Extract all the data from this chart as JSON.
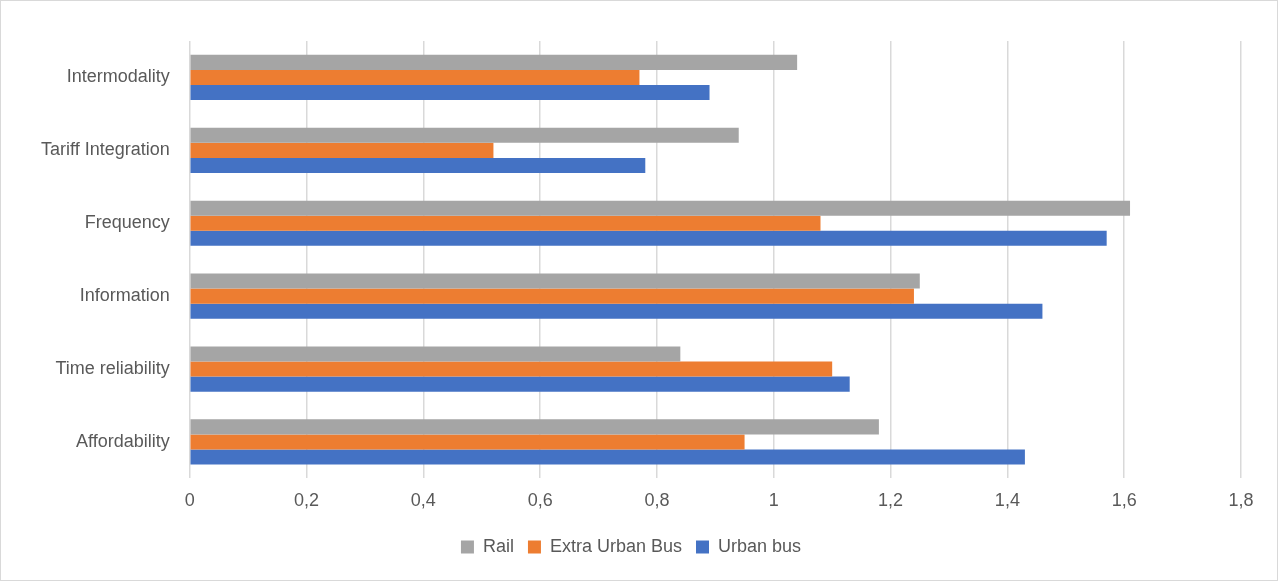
{
  "chart_data": {
    "type": "bar",
    "orientation": "horizontal",
    "categories": [
      "Intermodality",
      "Tariff Integration",
      "Frequency",
      "Information",
      "Time reliability",
      "Affordability"
    ],
    "series": [
      {
        "name": "Rail",
        "color": "#a5a5a5",
        "values": [
          1.04,
          0.94,
          1.61,
          1.25,
          0.84,
          1.18
        ]
      },
      {
        "name": "Extra Urban Bus",
        "color": "#ed7d31",
        "values": [
          0.77,
          0.52,
          1.08,
          1.24,
          1.1,
          0.95
        ]
      },
      {
        "name": "Urban bus",
        "color": "#4472c4",
        "values": [
          0.89,
          0.78,
          1.57,
          1.46,
          1.13,
          1.43
        ]
      }
    ],
    "xlim": [
      0,
      1.8
    ],
    "xticks": [
      0,
      {
        "value": 0.2,
        "label": "0,2"
      },
      {
        "value": 0.4,
        "label": "0,4"
      },
      {
        "value": 0.6,
        "label": "0,6"
      },
      {
        "value": 0.8,
        "label": "0,8"
      },
      1,
      {
        "value": 1.2,
        "label": "1,2"
      },
      {
        "value": 1.4,
        "label": "1,4"
      },
      {
        "value": 1.6,
        "label": "1,6"
      },
      {
        "value": 1.8,
        "label": "1,8"
      }
    ],
    "grid": "x",
    "legend": "bottom"
  }
}
